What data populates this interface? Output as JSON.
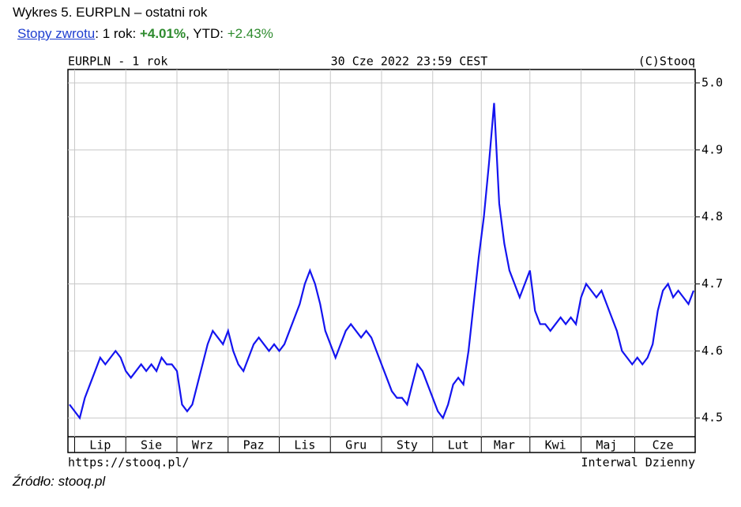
{
  "chart_data": {
    "type": "line",
    "title": "Wykres 5. EURPLN – ostatni rok",
    "subtitle": {
      "link": "Stopy zwrotu",
      "one_year_label": ": 1 rok: ",
      "one_year": "+4.01%",
      "ytd_label": ", YTD: ",
      "ytd": "+2.43%"
    },
    "header": {
      "left": "EURPLN - 1 rok",
      "center": "30 Cze 2022 23:59 CEST",
      "right": "(C)Stooq"
    },
    "footer": {
      "left": "https://stooq.pl/",
      "right": "Interwal Dzienny"
    },
    "source": "Źródło: stooq.pl",
    "color": "#1414f0",
    "grid": true,
    "ylim": [
      4.472,
      5.02
    ],
    "yticks": [
      4.5,
      4.6,
      4.7,
      4.8,
      4.9,
      {
        "value": 5,
        "label": "5.0"
      }
    ],
    "categories": [
      null,
      null,
      null,
      null,
      null,
      null,
      "Lip",
      null,
      null,
      null,
      null,
      null,
      null,
      null,
      null,
      null,
      "Sie",
      null,
      null,
      null,
      null,
      null,
      null,
      null,
      null,
      null,
      "Wrz",
      null,
      null,
      null,
      null,
      null,
      null,
      null,
      null,
      null,
      "Paz",
      null,
      null,
      null,
      null,
      null,
      null,
      null,
      null,
      null,
      "Lis",
      null,
      null,
      null,
      null,
      null,
      null,
      null,
      null,
      null,
      "Gru",
      null,
      null,
      null,
      null,
      null,
      null,
      null,
      null,
      null,
      "Sty",
      null,
      null,
      null,
      null,
      null,
      null,
      null,
      null,
      null,
      "Lut",
      null,
      null,
      null,
      null,
      null,
      null,
      null,
      null,
      "Mar",
      null,
      null,
      null,
      null,
      null,
      null,
      null,
      null,
      null,
      "Kwi",
      null,
      null,
      null,
      null,
      null,
      null,
      null,
      null,
      null,
      "Maj",
      null,
      null,
      null,
      null,
      null,
      null,
      null,
      null,
      null,
      null,
      "Cze",
      null,
      null,
      null,
      null,
      null,
      null
    ],
    "values": [
      4.52,
      4.51,
      4.5,
      4.53,
      4.55,
      4.57,
      4.59,
      4.58,
      4.59,
      4.6,
      4.59,
      4.57,
      4.56,
      4.57,
      4.58,
      4.57,
      4.58,
      4.57,
      4.59,
      4.58,
      4.58,
      4.57,
      4.52,
      4.51,
      4.52,
      4.55,
      4.58,
      4.61,
      4.63,
      4.62,
      4.61,
      4.63,
      4.6,
      4.58,
      4.57,
      4.59,
      4.61,
      4.62,
      4.61,
      4.6,
      4.61,
      4.6,
      4.61,
      4.63,
      4.65,
      4.67,
      4.7,
      4.72,
      4.7,
      4.67,
      4.63,
      4.61,
      4.59,
      4.61,
      4.63,
      4.64,
      4.63,
      4.62,
      4.63,
      4.62,
      4.6,
      4.58,
      4.56,
      4.54,
      4.53,
      4.53,
      4.52,
      4.55,
      4.58,
      4.57,
      4.55,
      4.53,
      4.51,
      4.5,
      4.52,
      4.55,
      4.56,
      4.55,
      4.6,
      4.67,
      4.74,
      4.8,
      4.88,
      4.97,
      4.82,
      4.76,
      4.72,
      4.7,
      4.68,
      4.7,
      4.72,
      4.66,
      4.64,
      4.64,
      4.63,
      4.64,
      4.65,
      4.64,
      4.65,
      4.64,
      4.68,
      4.7,
      4.69,
      4.68,
      4.69,
      4.67,
      4.65,
      4.63,
      4.6,
      4.59,
      4.58,
      4.59,
      4.58,
      4.59,
      4.61,
      4.66,
      4.69,
      4.7,
      4.68,
      4.69,
      4.68,
      4.67,
      4.69
    ]
  }
}
